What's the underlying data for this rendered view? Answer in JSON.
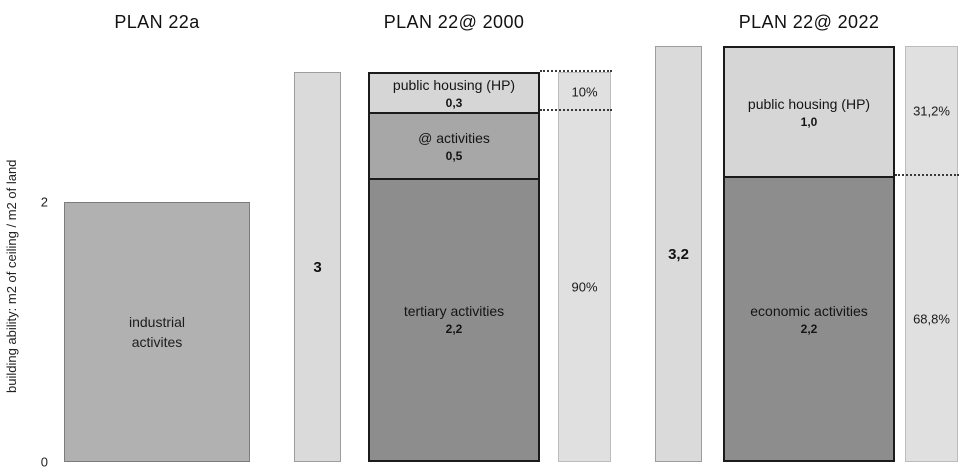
{
  "chart_data": {
    "type": "bar",
    "title": "",
    "xlabel": "",
    "ylabel": "building ability: m2 of ceiling / m2 of land",
    "ylim": [
      0,
      3.2
    ],
    "grid": false,
    "legend": "none",
    "yticks": [
      {
        "label": "2",
        "value": 2
      },
      {
        "label": "0",
        "value": 0
      }
    ],
    "groups": [
      {
        "title": "PLAN 22a",
        "total": 2,
        "segments": [
          {
            "label": "industrial\nactivites",
            "value": 2
          }
        ]
      },
      {
        "title": "PLAN 22@ 2000",
        "total": 3,
        "total_label": "3",
        "segments": [
          {
            "label": "public housing (HP)",
            "value": 0.3,
            "value_label": "0,3"
          },
          {
            "label": "@ activities",
            "value": 0.5,
            "value_label": "0,5"
          },
          {
            "label": "tertiary activities",
            "value": 2.2,
            "value_label": "2,2"
          }
        ],
        "percent_column": {
          "marks": [
            {
              "label": "10%",
              "center": 2.85
            },
            {
              "label": "90%",
              "center": 1.35
            }
          ],
          "dividers": [
            3,
            2.7
          ]
        }
      },
      {
        "title": "PLAN 22@ 2022",
        "total": 3.2,
        "total_label": "3,2",
        "segments": [
          {
            "label": "public housing (HP)",
            "value": 1.0,
            "value_label": "1,0"
          },
          {
            "label": "economic activities",
            "value": 2.2,
            "value_label": "2,2"
          }
        ],
        "percent_column": {
          "marks": [
            {
              "label": "31,2%",
              "center": 2.7
            },
            {
              "label": "68,8%",
              "center": 1.1
            }
          ],
          "dividers": [
            2.2
          ]
        }
      }
    ],
    "colors": {
      "industrial_fill": "#b1b1b1",
      "light_segment": "#d6d6d6",
      "medium_segment": "#a7a7a7",
      "dark_segment": "#8d8d8d",
      "total_column": "#dadada",
      "percent_column": "#e0e0e0",
      "stack_border": "#1b1b1b"
    }
  }
}
